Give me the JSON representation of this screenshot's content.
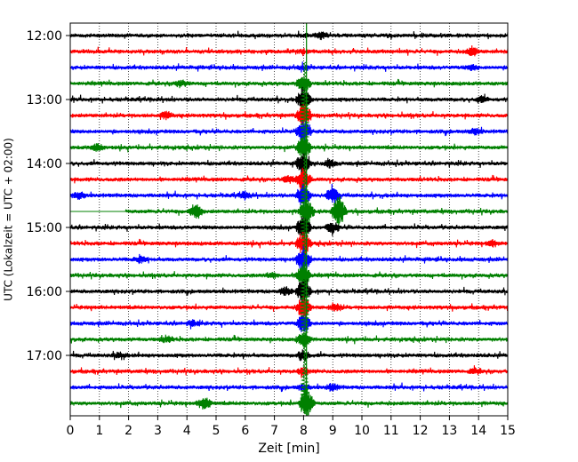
{
  "chart_data": {
    "type": "line",
    "subtype": "helicorder",
    "title": "",
    "xlabel": "Zeit  [min]",
    "ylabel": "UTC (Lokalzeit = UTC + 02:00)",
    "xlim": [
      0,
      15
    ],
    "x_ticks": [
      "0",
      "1",
      "2",
      "3",
      "4",
      "5",
      "6",
      "7",
      "8",
      "9",
      "10",
      "11",
      "12",
      "13",
      "14",
      "15"
    ],
    "y_start": "12:00",
    "y_end": "17:45",
    "y_ticks": [
      "12:00",
      "13:00",
      "14:00",
      "15:00",
      "16:00",
      "17:00"
    ],
    "trace_interval_min": 15,
    "trace_colors": [
      "#000000",
      "#ff0000",
      "#0000ff",
      "#008000"
    ],
    "traces": [
      {
        "start": "12:00",
        "color": "#000000",
        "events": [
          {
            "x": 8.0,
            "amp": 0.2
          },
          {
            "x": 8.6,
            "amp": 0.6
          }
        ]
      },
      {
        "start": "12:15",
        "color": "#ff0000",
        "events": [
          {
            "x": 8.0,
            "amp": 0.3
          },
          {
            "x": 13.8,
            "amp": 0.8
          }
        ]
      },
      {
        "start": "12:30",
        "color": "#0000ff",
        "events": [
          {
            "x": 8.0,
            "amp": 0.4
          },
          {
            "x": 13.8,
            "amp": 0.4
          }
        ]
      },
      {
        "start": "12:45",
        "color": "#008000",
        "events": [
          {
            "x": 3.8,
            "amp": 0.6
          },
          {
            "x": 8.0,
            "amp": 1.8
          }
        ]
      },
      {
        "start": "13:00",
        "color": "#000000",
        "events": [
          {
            "x": 8.0,
            "amp": 2.2
          },
          {
            "x": 14.1,
            "amp": 0.5
          }
        ]
      },
      {
        "start": "13:15",
        "color": "#ff0000",
        "events": [
          {
            "x": 3.3,
            "amp": 0.6
          },
          {
            "x": 8.0,
            "amp": 2.4
          }
        ]
      },
      {
        "start": "13:30",
        "color": "#0000ff",
        "events": [
          {
            "x": 8.0,
            "amp": 2.4
          },
          {
            "x": 13.9,
            "amp": 0.5
          }
        ]
      },
      {
        "start": "13:45",
        "color": "#008000",
        "events": [
          {
            "x": 0.9,
            "amp": 0.6
          },
          {
            "x": 8.0,
            "amp": 2.4
          }
        ]
      },
      {
        "start": "14:00",
        "color": "#000000",
        "events": [
          {
            "x": 8.0,
            "amp": 2.4
          },
          {
            "x": 8.9,
            "amp": 0.6
          }
        ]
      },
      {
        "start": "14:15",
        "color": "#ff0000",
        "events": [
          {
            "x": 7.5,
            "amp": 0.6
          },
          {
            "x": 8.0,
            "amp": 2.4
          }
        ]
      },
      {
        "start": "14:30",
        "color": "#0000ff",
        "events": [
          {
            "x": 0.3,
            "amp": 0.6
          },
          {
            "x": 6.0,
            "amp": 0.6
          },
          {
            "x": 8.0,
            "amp": 2.4
          },
          {
            "x": 9.0,
            "amp": 1.5
          }
        ]
      },
      {
        "start": "14:45",
        "color": "#008000",
        "gap": [
          0,
          1.9
        ],
        "events": [
          {
            "x": 4.3,
            "amp": 1.5
          },
          {
            "x": 8.1,
            "amp": 2.6
          },
          {
            "x": 9.2,
            "amp": 3.0
          }
        ]
      },
      {
        "start": "15:00",
        "color": "#000000",
        "events": [
          {
            "x": 8.0,
            "amp": 2.4
          },
          {
            "x": 9.0,
            "amp": 1.0
          }
        ]
      },
      {
        "start": "15:15",
        "color": "#ff0000",
        "events": [
          {
            "x": 8.0,
            "amp": 2.4
          },
          {
            "x": 14.5,
            "amp": 0.5
          }
        ]
      },
      {
        "start": "15:30",
        "color": "#0000ff",
        "events": [
          {
            "x": 8.0,
            "amp": 2.4
          },
          {
            "x": 2.4,
            "amp": 0.5
          }
        ]
      },
      {
        "start": "15:45",
        "color": "#008000",
        "events": [
          {
            "x": 6.9,
            "amp": 0.5
          },
          {
            "x": 8.0,
            "amp": 2.4
          }
        ]
      },
      {
        "start": "16:00",
        "color": "#000000",
        "events": [
          {
            "x": 7.4,
            "amp": 0.7
          },
          {
            "x": 8.0,
            "amp": 2.4
          }
        ]
      },
      {
        "start": "16:15",
        "color": "#ff0000",
        "events": [
          {
            "x": 8.0,
            "amp": 2.2
          },
          {
            "x": 9.1,
            "amp": 0.6
          }
        ]
      },
      {
        "start": "16:30",
        "color": "#0000ff",
        "events": [
          {
            "x": 8.0,
            "amp": 1.8
          },
          {
            "x": 4.2,
            "amp": 0.5
          }
        ]
      },
      {
        "start": "16:45",
        "color": "#008000",
        "events": [
          {
            "x": 8.0,
            "amp": 1.4
          },
          {
            "x": 3.3,
            "amp": 0.5
          }
        ]
      },
      {
        "start": "17:00",
        "color": "#000000",
        "events": [
          {
            "x": 8.0,
            "amp": 1.0
          },
          {
            "x": 1.7,
            "amp": 0.5
          }
        ]
      },
      {
        "start": "17:15",
        "color": "#ff0000",
        "events": [
          {
            "x": 8.0,
            "amp": 0.7
          },
          {
            "x": 13.9,
            "amp": 0.5
          }
        ]
      },
      {
        "start": "17:30",
        "color": "#0000ff",
        "events": [
          {
            "x": 8.0,
            "amp": 0.5
          },
          {
            "x": 9.0,
            "amp": 0.6
          }
        ]
      },
      {
        "start": "17:45",
        "color": "#008000",
        "events": [
          {
            "x": 4.6,
            "amp": 1.2
          },
          {
            "x": 8.1,
            "amp": 3.0
          }
        ]
      }
    ],
    "event_marker_x": 8.1,
    "event_marker_color": "#008000",
    "grid": {
      "x": true,
      "style": "dotted"
    },
    "legend": "none"
  }
}
